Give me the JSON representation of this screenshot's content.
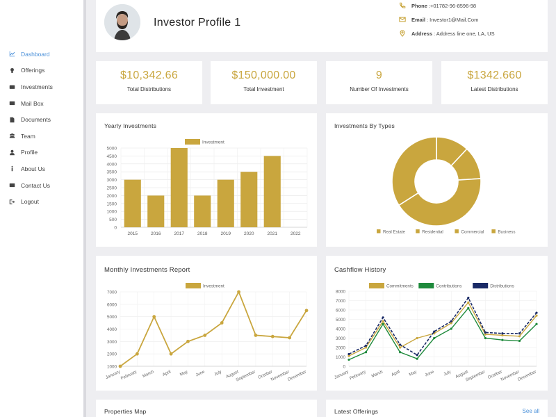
{
  "colors": {
    "accent": "#c9a63e",
    "link": "#4a90d9",
    "green": "#1f8a3c",
    "navy": "#1a2a66"
  },
  "sidebar": {
    "items": [
      {
        "label": "Dashboard",
        "icon": "chart-line-icon",
        "active": true
      },
      {
        "label": "Offerings",
        "icon": "lightbulb-icon"
      },
      {
        "label": "Investments",
        "icon": "briefcase-icon"
      },
      {
        "label": "Mail Box",
        "icon": "envelope-icon"
      },
      {
        "label": "Documents",
        "icon": "document-icon"
      },
      {
        "label": "Team",
        "icon": "users-icon"
      },
      {
        "label": "Profile",
        "icon": "user-icon"
      },
      {
        "label": "About Us",
        "icon": "info-icon"
      },
      {
        "label": "Contact Us",
        "icon": "envelope-icon"
      },
      {
        "label": "Logout",
        "icon": "logout-icon"
      }
    ]
  },
  "profile": {
    "name": "Investor Profile 1",
    "phone_label": "Phone",
    "phone": ":+01782-96-8596-98",
    "email_label": "Email",
    "email": ": Investor1@Mail.Com",
    "address_label": "Address",
    "address": ": Address line one, LA, US"
  },
  "stats": [
    {
      "value": "$10,342.66",
      "label": "Total Distributions"
    },
    {
      "value": "$150,000.00",
      "label": "Total Investment"
    },
    {
      "value": "9",
      "label": "Number Of Investments"
    },
    {
      "value": "$1342.660",
      "label": "Latest Distributions"
    }
  ],
  "cards": {
    "yearly": "Yearly Investments",
    "types": "Investments By Types",
    "monthly": "Monthly Investments Report",
    "cashflow": "Cashflow History",
    "map": "Properties Map",
    "offerings": "Latest Offerings",
    "see_all": "See all"
  },
  "chart_data": [
    {
      "type": "bar",
      "title": "Yearly Investments",
      "categories": [
        "2015",
        "2016",
        "2017",
        "2018",
        "2019",
        "2020",
        "2021",
        "2022"
      ],
      "series": [
        {
          "name": "Investment",
          "values": [
            3000,
            2000,
            5000,
            2000,
            3000,
            3500,
            4500,
            0
          ]
        }
      ],
      "ylim": [
        0,
        5000
      ],
      "yticks": [
        0,
        500,
        1000,
        1500,
        2000,
        2500,
        3000,
        3500,
        4000,
        4500,
        5000
      ],
      "legend": "top",
      "grid": true
    },
    {
      "type": "pie",
      "title": "Investments By Types",
      "donut": true,
      "categories": [
        "Real Estate",
        "Residential",
        "Commercial",
        "Business"
      ],
      "values": [
        12,
        12,
        42,
        34
      ],
      "legend": "bottom"
    },
    {
      "type": "line",
      "title": "Monthly Investments Report",
      "categories": [
        "January",
        "February",
        "March",
        "April",
        "May",
        "June",
        "July",
        "August",
        "September",
        "October",
        "November",
        "December"
      ],
      "series": [
        {
          "name": "Investment",
          "values": [
            1000,
            2000,
            5000,
            2000,
            3000,
            3500,
            4500,
            7000,
            3500,
            3400,
            3300,
            5500
          ]
        }
      ],
      "ylim": [
        1000,
        7000
      ],
      "yticks": [
        1000,
        2000,
        3000,
        4000,
        5000,
        6000,
        7000
      ],
      "legend": "top",
      "grid": true
    },
    {
      "type": "line",
      "title": "Cashflow History",
      "categories": [
        "January",
        "February",
        "March",
        "April",
        "May",
        "June",
        "July",
        "August",
        "September",
        "October",
        "November",
        "December"
      ],
      "series": [
        {
          "name": "Commitments",
          "values": [
            1100,
            2000,
            4800,
            2000,
            3000,
            3500,
            4600,
            6800,
            3400,
            3300,
            3200,
            5400
          ]
        },
        {
          "name": "Contributions",
          "values": [
            700,
            1500,
            4500,
            1500,
            800,
            3000,
            4000,
            6200,
            3000,
            2800,
            2700,
            4500
          ]
        },
        {
          "name": "Distributions",
          "values": [
            1300,
            2200,
            5200,
            2300,
            1200,
            3700,
            4800,
            7300,
            3600,
            3500,
            3500,
            5700
          ]
        }
      ],
      "ylim": [
        0,
        8000
      ],
      "yticks": [
        0,
        1000,
        2000,
        3000,
        4000,
        5000,
        6000,
        7000,
        8000
      ],
      "legend": "top",
      "grid": true
    }
  ]
}
